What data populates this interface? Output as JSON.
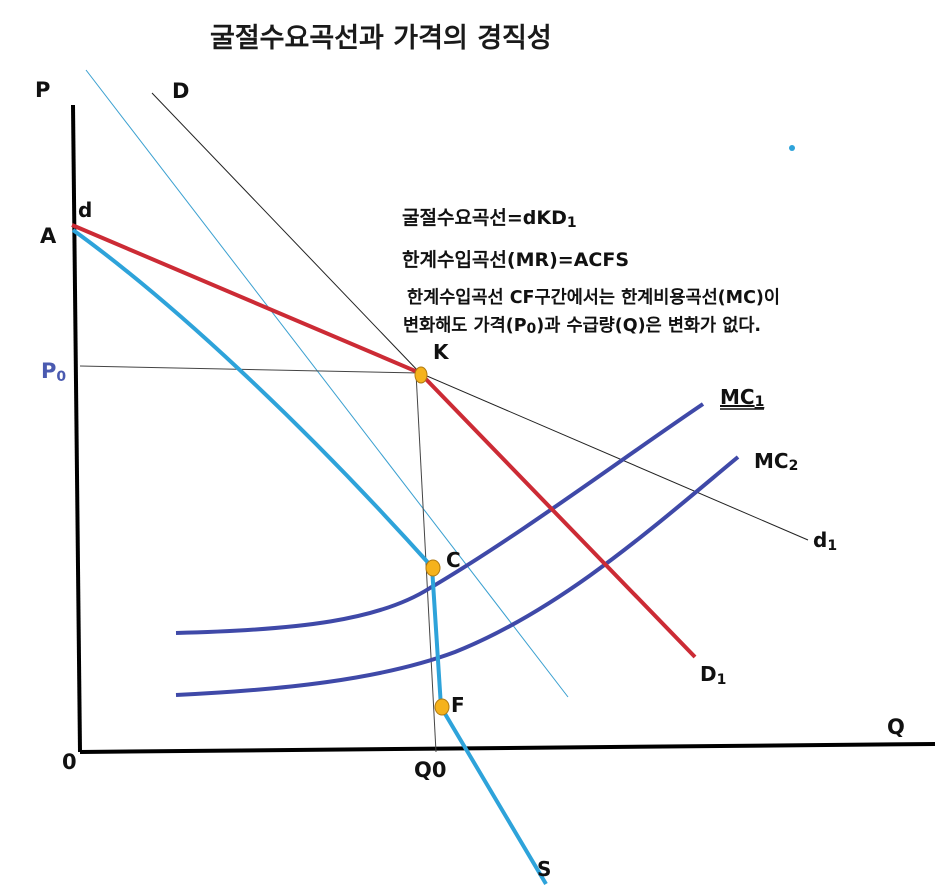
{
  "title": "굴절수요곡선과 가격의 경직성",
  "axes": {
    "y_label": "P",
    "x_label": "Q",
    "origin": "0"
  },
  "labels": {
    "D": "D",
    "d": "d",
    "A": "A",
    "P0_main": "P",
    "P0_sub": "0",
    "K": "K",
    "C": "C",
    "F": "F",
    "Q0": "Q0",
    "S": "S",
    "d1_main": "d",
    "d1_sub": "1",
    "D1_main": "D",
    "D1_sub": "1",
    "MC1_main": "MC",
    "MC1_sub": "1",
    "MC2_main": "MC",
    "MC2_sub": "2"
  },
  "notes": {
    "line1_main": "굴절수요곡선=dKD",
    "line1_sub": "1",
    "line2": "한계수입곡선(MR)=ACFS",
    "line3": "한계수입곡선 CF구간에서는 한계비용곡선(MC)이",
    "line4_a": "변화해도 가격(P",
    "line4_sub": "0",
    "line4_b": ")과 수급량(Q)은 변화가 없다."
  },
  "colors": {
    "kinked_demand": "#cc2b35",
    "marginal_revenue": "#2ea3da",
    "marginal_cost": "#3f49a8",
    "thin_blue": "#3aa0d0",
    "thin_black": "#222222",
    "point_fill": "#f5b21c",
    "point_stroke": "#b07a10",
    "p0_label": "#4a5ab0"
  }
}
